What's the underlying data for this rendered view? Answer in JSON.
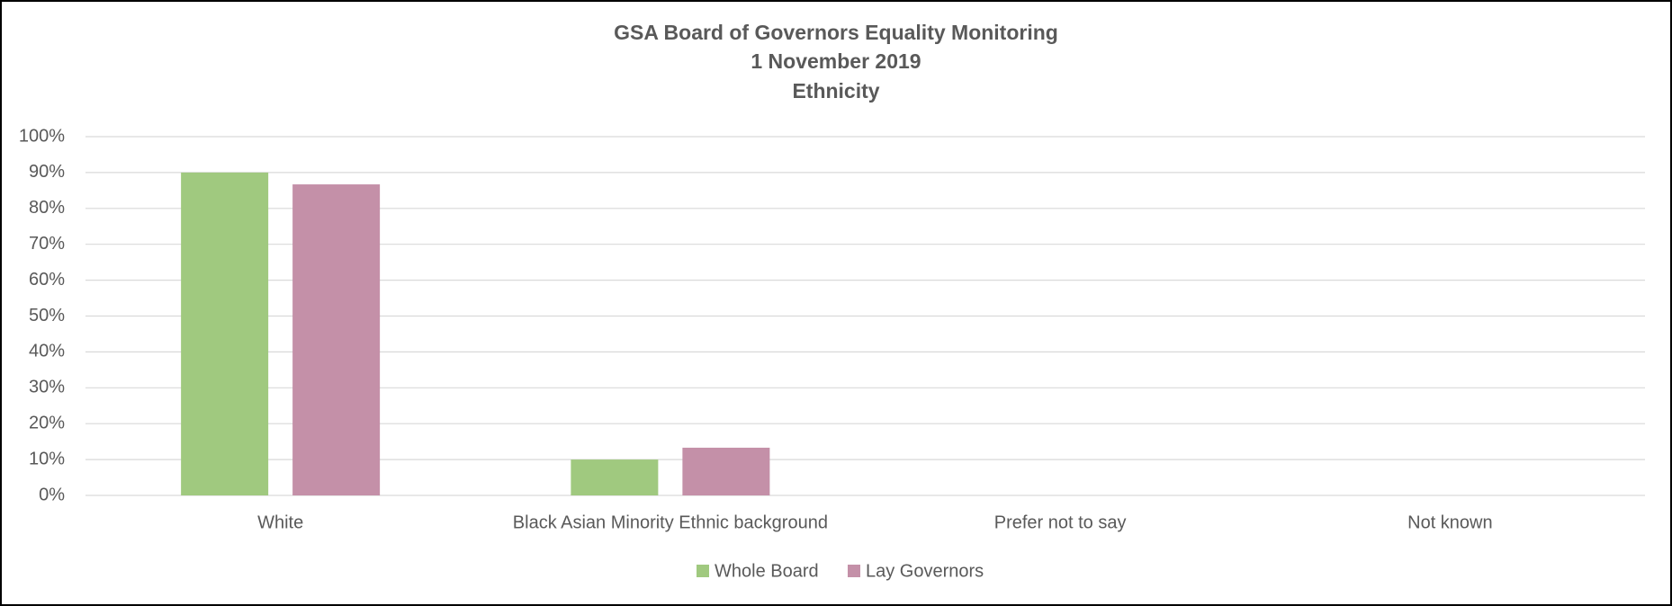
{
  "chart_data": {
    "type": "bar",
    "title": [
      "GSA Board of Governors Equality Monitoring",
      "1 November 2019",
      "Ethnicity"
    ],
    "categories": [
      "White",
      "Black Asian Minority Ethnic background",
      "Prefer not to say",
      "Not known"
    ],
    "series": [
      {
        "name": "Whole Board",
        "color": "#a0c97f",
        "values": [
          90,
          10,
          0,
          0
        ]
      },
      {
        "name": "Lay Governors",
        "color": "#c490a8",
        "values": [
          86.7,
          13.3,
          0,
          0
        ]
      }
    ],
    "ylim": [
      0,
      100
    ],
    "yticks": [
      {
        "value": 0,
        "label": "0%"
      },
      {
        "value": 10,
        "label": "10%"
      },
      {
        "value": 20,
        "label": "20%"
      },
      {
        "value": 30,
        "label": "30%"
      },
      {
        "value": 40,
        "label": "40%"
      },
      {
        "value": 50,
        "label": "50%"
      },
      {
        "value": 60,
        "label": "60%"
      },
      {
        "value": 70,
        "label": "70%"
      },
      {
        "value": 80,
        "label": "80%"
      },
      {
        "value": 90,
        "label": "90%"
      },
      {
        "value": 100,
        "label": "100%"
      }
    ],
    "grid": true,
    "legend": "bottom"
  }
}
